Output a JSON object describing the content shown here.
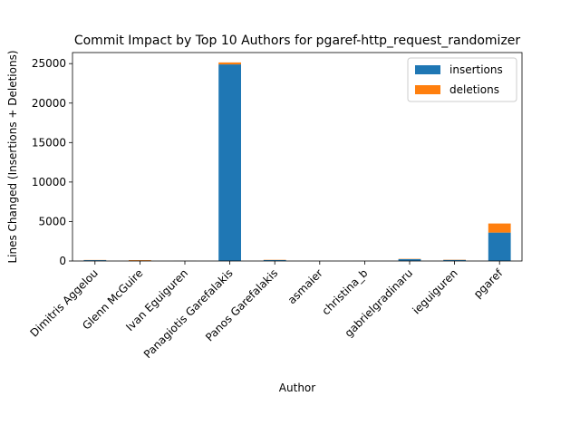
{
  "chart_data": {
    "type": "bar",
    "stacked": true,
    "title": "Commit Impact by Top 10 Authors for pgaref-http_request_randomizer",
    "xlabel": "Author",
    "ylabel": "Lines Changed (Insertions + Deletions)",
    "categories": [
      "Dimitris Aggelou",
      "Glenn McGuire",
      "Ivan Eguiguren",
      "Panagiotis Garefalakis",
      "Panos Garefalakis",
      "asmaier",
      "christina_b",
      "gabrielgradinaru",
      "ieguiguren",
      "pgaref"
    ],
    "series": [
      {
        "name": "insertions",
        "color": "#1f77b4",
        "values": [
          110,
          40,
          10,
          24900,
          120,
          5,
          5,
          230,
          140,
          3600
        ]
      },
      {
        "name": "deletions",
        "color": "#ff7f0e",
        "values": [
          20,
          70,
          5,
          250,
          30,
          2,
          2,
          40,
          30,
          1150
        ]
      }
    ],
    "ylim": [
      0,
      26400
    ],
    "yticks": [
      0,
      5000,
      10000,
      15000,
      20000,
      25000
    ],
    "legend_position": "upper right",
    "grid": false
  }
}
